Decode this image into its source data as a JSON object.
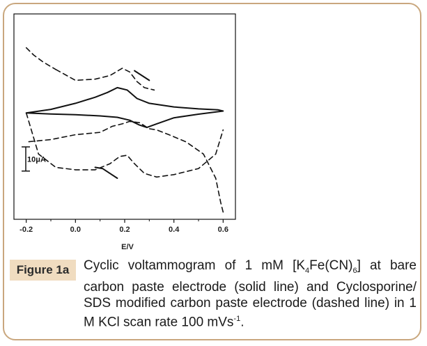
{
  "figure": {
    "label": "Figure 1a",
    "caption": {
      "part1": "Cyclic voltammogram of 1 mM [K",
      "sub1": "4",
      "part2": "Fe(CN)",
      "sub2": "6",
      "part3": "] at bare carbon paste electrode (solid line) and Cyclosporine/ SDS modified carbon paste electrode (dashed line) in 1 M KCl scan rate 100 mVs",
      "sup": "-1",
      "part4": "."
    }
  },
  "colors": {
    "frame_border": "#c9a77e",
    "label_bg": "#f0dcc0",
    "trace": "#111111"
  },
  "chart_data": {
    "type": "line",
    "title": "",
    "xlabel": "E/V",
    "ylabel": "",
    "xlim": [
      -0.25,
      0.65
    ],
    "ylim": [
      -45,
      40
    ],
    "x_ticks": [
      -0.2,
      0.0,
      0.2,
      0.4,
      0.6
    ],
    "x_tick_labels": [
      "-0.2",
      "0.0",
      "0.2",
      "0.4",
      "0.6"
    ],
    "scale_bar": {
      "label": "10μA",
      "value": 10
    },
    "series": [
      {
        "name": "bare carbon paste electrode",
        "style": "solid",
        "x": [
          -0.2,
          -0.1,
          0.0,
          0.08,
          0.13,
          0.17,
          0.21,
          0.25,
          0.3,
          0.4,
          0.5,
          0.58,
          0.6,
          0.5,
          0.4,
          0.33,
          0.29,
          0.26,
          0.22,
          0.17,
          0.1,
          0.0,
          -0.1,
          -0.2
        ],
        "y": [
          -1,
          0.5,
          3,
          5.5,
          7.5,
          9.5,
          8.5,
          5,
          3,
          1.5,
          0.7,
          0.3,
          -0.2,
          -1.5,
          -3,
          -5.5,
          -7,
          -6,
          -4,
          -2.8,
          -2.2,
          -1.7,
          -1.4,
          -1
        ]
      },
      {
        "name": "Cyclosporine/SDS modified carbon paste electrode (anodic)",
        "style": "dashed",
        "x": [
          -0.2,
          -0.15,
          -0.08,
          0.0,
          0.08,
          0.14,
          0.18,
          0.21,
          0.24,
          0.28,
          0.33,
          0.4,
          0.5,
          0.57,
          0.6
        ],
        "y": [
          -1,
          -18,
          -23.5,
          -24.5,
          -24.5,
          -22,
          -19,
          -18.5,
          -22,
          -26,
          -27.5,
          -26.5,
          -24,
          -18,
          -8
        ]
      },
      {
        "name": "Cyclosporine/SDS modified carbon paste electrode (cathodic)",
        "style": "dashed",
        "x": [
          0.6,
          0.59,
          0.57,
          0.52,
          0.45,
          0.38,
          0.33,
          0.3,
          0.26,
          0.22,
          0.19,
          0.15,
          0.1,
          0.0,
          -0.1,
          -0.2
        ],
        "y": [
          -42,
          -38,
          -28,
          -18,
          -13,
          -10,
          -8,
          -7.5,
          -5,
          -4.5,
          -5.5,
          -6.5,
          -9,
          -10,
          -12,
          -13
        ]
      },
      {
        "name": "Cyclosporine/SDS modified carbon paste electrode (onset)",
        "style": "dashed",
        "x": [
          -0.2,
          -0.17,
          -0.13,
          -0.08
        ],
        "y": [
          26,
          23,
          20,
          17
        ]
      },
      {
        "name": "Cyclosporine/SDS modified carbon paste electrode (upper)",
        "style": "dashed",
        "x": [
          -0.08,
          0.0,
          0.08,
          0.14,
          0.19,
          0.22,
          0.25,
          0.28,
          0.32
        ],
        "y": [
          17,
          12.5,
          13,
          14.5,
          17.5,
          16,
          12,
          9.5,
          8.5
        ]
      },
      {
        "name": "solid fragment (lower)",
        "style": "solid",
        "x": [
          0.08,
          0.11,
          0.14,
          0.17
        ],
        "y": [
          -23.5,
          -24,
          -26,
          -28
        ]
      },
      {
        "name": "solid fragment (upper)",
        "style": "solid",
        "x": [
          0.24,
          0.27,
          0.3
        ],
        "y": [
          16.5,
          14.5,
          12.5
        ]
      }
    ]
  }
}
